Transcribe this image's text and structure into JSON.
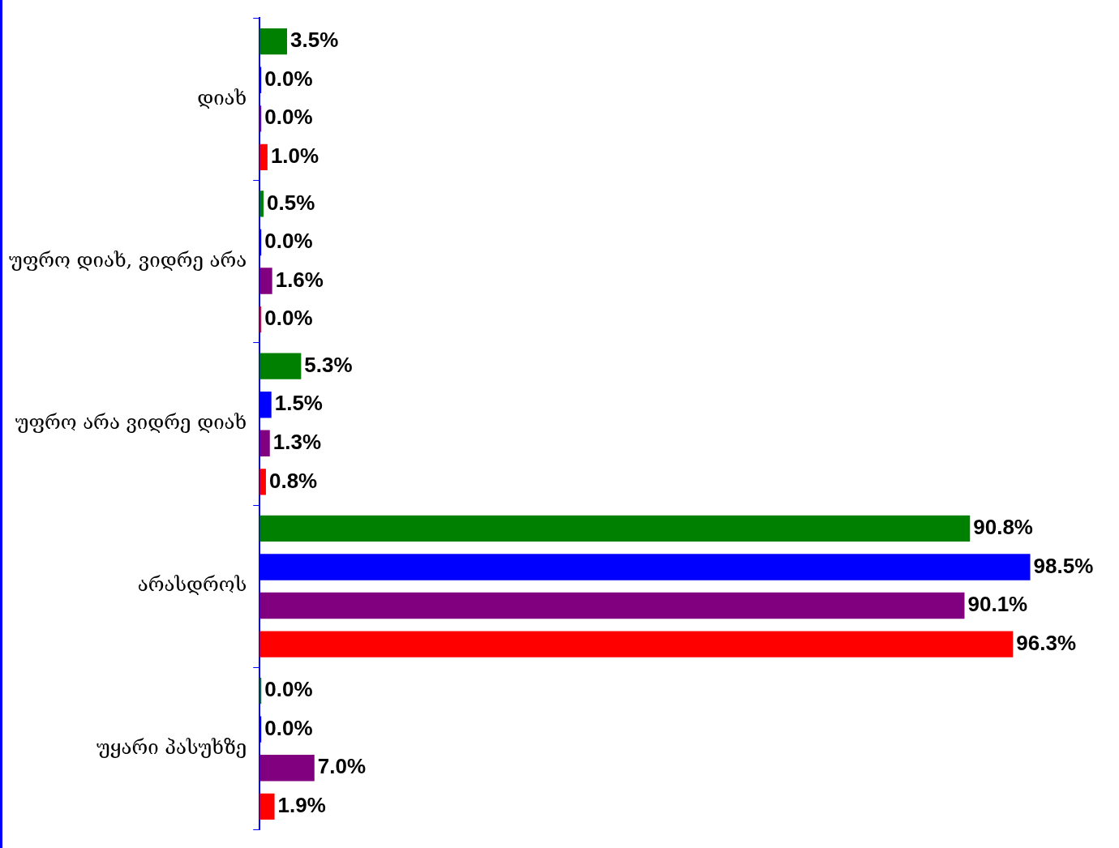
{
  "chart_data": {
    "type": "bar",
    "orientation": "horizontal",
    "categories": [
      "დიახ",
      "უფრო დიახ, ვიდრე არა",
      "უფრო არა ვიდრე დიახ",
      "არასდროს",
      "უყარი პასუხზე"
    ],
    "series": [
      {
        "color": "#008000",
        "values": [
          3.5,
          0.5,
          5.3,
          90.8,
          0.0
        ],
        "value_labels": [
          "3.5%",
          "0.5%",
          "5.3%",
          "90.8%",
          "0.0%"
        ]
      },
      {
        "color": "#0000ff",
        "values": [
          0.0,
          0.0,
          1.5,
          98.5,
          0.0
        ],
        "value_labels": [
          "0.0%",
          "0.0%",
          "1.5%",
          "98.5%",
          "0.0%"
        ]
      },
      {
        "color": "#800080",
        "values": [
          0.0,
          1.6,
          1.3,
          90.1,
          7.0
        ],
        "value_labels": [
          "0.0%",
          "1.6%",
          "1.3%",
          "90.1%",
          "7.0%"
        ]
      },
      {
        "color": "#ff0000",
        "values": [
          1.0,
          0.0,
          0.8,
          96.3,
          1.9
        ],
        "value_labels": [
          "1.0%",
          "0.0%",
          "0.8%",
          "96.3%",
          "1.9%"
        ]
      }
    ],
    "tick_labels": "y",
    "grid": false,
    "legend": false
  }
}
